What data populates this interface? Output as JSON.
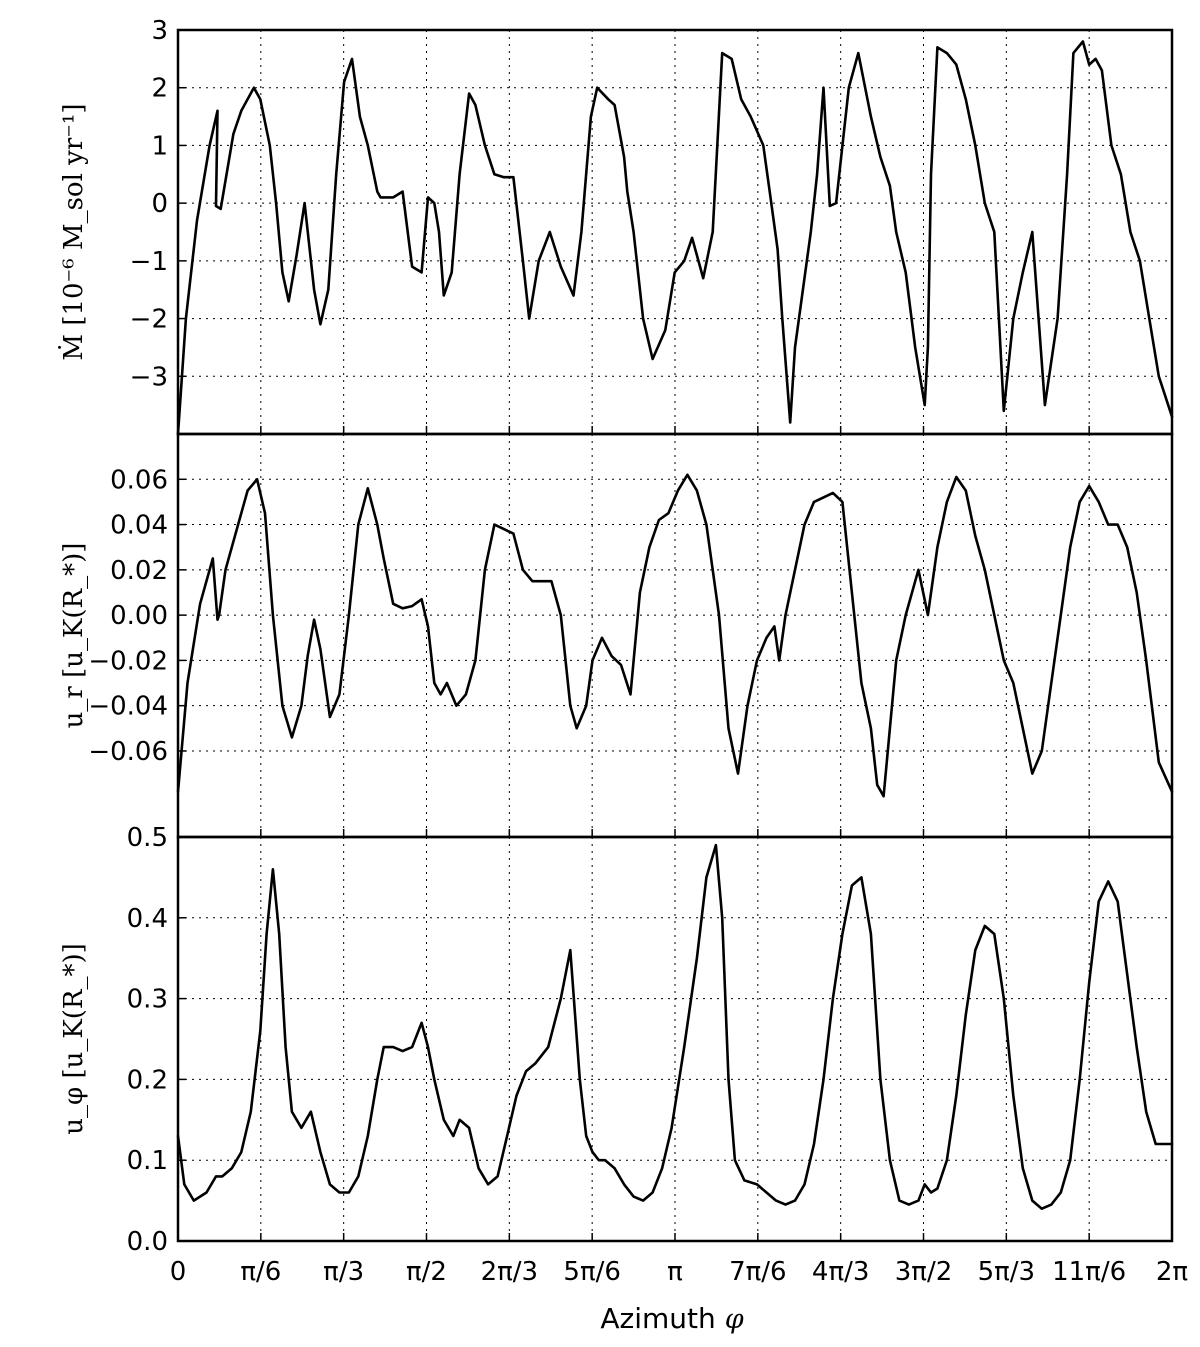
{
  "xaxis": {
    "label_text": "Azimuth",
    "label_symbol": "φ",
    "range": [
      0,
      6.2832
    ],
    "ticks": [
      {
        "value": 0,
        "label": "0"
      },
      {
        "value": 0.5236,
        "label": "π/6"
      },
      {
        "value": 1.0472,
        "label": "π/3"
      },
      {
        "value": 1.5708,
        "label": "π/2"
      },
      {
        "value": 2.0944,
        "label": "2π/3"
      },
      {
        "value": 2.618,
        "label": "5π/6"
      },
      {
        "value": 3.1416,
        "label": "π"
      },
      {
        "value": 3.6652,
        "label": "7π/6"
      },
      {
        "value": 4.1888,
        "label": "4π/3"
      },
      {
        "value": 4.7124,
        "label": "3π/2"
      },
      {
        "value": 5.236,
        "label": "5π/3"
      },
      {
        "value": 5.7596,
        "label": "11π/6"
      },
      {
        "value": 6.2832,
        "label": "2π"
      }
    ]
  },
  "chart_data": [
    {
      "type": "line",
      "ylabel": "Ṁ [10⁻⁶ M_sol yr⁻¹]",
      "ylim": [
        -4.0,
        3.0
      ],
      "yticks": [
        {
          "value": 3,
          "label": "3"
        },
        {
          "value": 2,
          "label": "2"
        },
        {
          "value": 1,
          "label": "1"
        },
        {
          "value": 0,
          "label": "0"
        },
        {
          "value": -1,
          "label": "−1"
        },
        {
          "value": -2,
          "label": "−2"
        },
        {
          "value": -3,
          "label": "−3"
        }
      ],
      "grid": true,
      "x": [
        0,
        0.05,
        0.12,
        0.2,
        0.25,
        0.24,
        0.27,
        0.35,
        0.4,
        0.48,
        0.52,
        0.58,
        0.62,
        0.66,
        0.7,
        0.75,
        0.8,
        0.86,
        0.9,
        0.95,
        1.0,
        1.05,
        1.1,
        1.15,
        1.2,
        1.26,
        1.28,
        1.3,
        1.36,
        1.42,
        1.48,
        1.54,
        1.58,
        1.62,
        1.65,
        1.68,
        1.73,
        1.78,
        1.84,
        1.88,
        1.94,
        2.0,
        2.06,
        2.12,
        2.18,
        2.22,
        2.28,
        2.35,
        2.42,
        2.5,
        2.55,
        2.61,
        2.65,
        2.72,
        2.76,
        2.82,
        2.84,
        2.88,
        2.94,
        3.0,
        3.08,
        3.14,
        3.2,
        3.25,
        3.32,
        3.38,
        3.44,
        3.5,
        3.56,
        3.62,
        3.7,
        3.74,
        3.79,
        3.82,
        3.87,
        3.9,
        3.95,
        4.0,
        4.04,
        4.08,
        4.12,
        4.16,
        4.24,
        4.3,
        4.38,
        4.44,
        4.5,
        4.54,
        4.6,
        4.66,
        4.72,
        4.74,
        4.76,
        4.8,
        4.86,
        4.92,
        4.98,
        5.04,
        5.1,
        5.16,
        5.22,
        5.28,
        5.34,
        5.4,
        5.48,
        5.56,
        5.62,
        5.66,
        5.72,
        5.76,
        5.8,
        5.84,
        5.9,
        5.96,
        6.02,
        6.08,
        6.14,
        6.2,
        6.2832
      ],
      "y": [
        -4.0,
        -2.0,
        -0.3,
        1.0,
        1.6,
        -0.05,
        -0.1,
        1.2,
        1.6,
        2.0,
        1.8,
        1.0,
        0.0,
        -1.2,
        -1.7,
        -0.9,
        0.0,
        -1.5,
        -2.1,
        -1.5,
        0.5,
        2.1,
        2.5,
        1.5,
        1.0,
        0.2,
        0.1,
        0.1,
        0.1,
        0.2,
        -1.1,
        -1.2,
        0.1,
        0.0,
        -0.5,
        -1.6,
        -1.2,
        0.5,
        1.9,
        1.7,
        1.0,
        0.5,
        0.45,
        0.45,
        -1.0,
        -2.0,
        -1.0,
        -0.5,
        -1.1,
        -1.6,
        -0.5,
        1.5,
        2.0,
        1.8,
        1.7,
        0.8,
        0.2,
        -0.5,
        -2.0,
        -2.7,
        -2.2,
        -1.2,
        -1.0,
        -0.6,
        -1.3,
        -0.5,
        2.6,
        2.5,
        1.8,
        1.5,
        1.0,
        0.2,
        -0.8,
        -2.0,
        -3.8,
        -2.5,
        -1.5,
        -0.5,
        0.5,
        2.0,
        -0.05,
        0.0,
        2.0,
        2.6,
        1.5,
        0.8,
        0.3,
        -0.5,
        -1.2,
        -2.5,
        -3.5,
        -2.5,
        0.5,
        2.7,
        2.6,
        2.4,
        1.8,
        1.0,
        0.0,
        -0.5,
        -3.6,
        -2.0,
        -1.2,
        -0.5,
        -3.5,
        -2.0,
        0.5,
        2.6,
        2.8,
        2.4,
        2.5,
        2.3,
        1.0,
        0.5,
        -0.5,
        -1.0,
        -2.0,
        -3.0,
        -3.7
      ]
    },
    {
      "type": "line",
      "ylabel": "u_r [u_K(R_*)]",
      "ylim": [
        -0.098,
        0.08
      ],
      "yticks": [
        {
          "value": 0.06,
          "label": "0.06"
        },
        {
          "value": 0.04,
          "label": "0.04"
        },
        {
          "value": 0.02,
          "label": "0.02"
        },
        {
          "value": 0.0,
          "label": "0.00"
        },
        {
          "value": -0.02,
          "label": "−0.02"
        },
        {
          "value": -0.04,
          "label": "−0.04"
        },
        {
          "value": -0.06,
          "label": "−0.06"
        }
      ],
      "grid": true,
      "x": [
        0,
        0.06,
        0.14,
        0.22,
        0.25,
        0.26,
        0.3,
        0.38,
        0.44,
        0.5,
        0.55,
        0.6,
        0.66,
        0.72,
        0.78,
        0.82,
        0.86,
        0.9,
        0.96,
        1.02,
        1.08,
        1.14,
        1.2,
        1.26,
        1.3,
        1.36,
        1.42,
        1.48,
        1.54,
        1.58,
        1.62,
        1.66,
        1.7,
        1.76,
        1.82,
        1.88,
        1.94,
        2.0,
        2.06,
        2.12,
        2.18,
        2.24,
        2.3,
        2.36,
        2.42,
        2.48,
        2.52,
        2.58,
        2.62,
        2.68,
        2.74,
        2.8,
        2.86,
        2.92,
        2.98,
        3.04,
        3.1,
        3.16,
        3.22,
        3.28,
        3.34,
        3.42,
        3.48,
        3.54,
        3.6,
        3.66,
        3.72,
        3.77,
        3.8,
        3.84,
        3.9,
        3.96,
        4.02,
        4.08,
        4.14,
        4.2,
        4.26,
        4.32,
        4.38,
        4.42,
        4.46,
        4.5,
        4.54,
        4.6,
        4.68,
        4.74,
        4.8,
        4.86,
        4.92,
        4.98,
        5.04,
        5.1,
        5.16,
        5.22,
        5.28,
        5.34,
        5.4,
        5.46,
        5.52,
        5.58,
        5.64,
        5.7,
        5.76,
        5.82,
        5.88,
        5.94,
        6.0,
        6.06,
        6.12,
        6.2,
        6.2832
      ],
      "y": [
        -0.078,
        -0.03,
        0.005,
        0.025,
        -0.002,
        0.0,
        0.02,
        0.04,
        0.055,
        0.06,
        0.045,
        0.0,
        -0.04,
        -0.054,
        -0.04,
        -0.018,
        -0.002,
        -0.015,
        -0.045,
        -0.035,
        0.0,
        0.04,
        0.056,
        0.04,
        0.025,
        0.005,
        0.003,
        0.004,
        0.007,
        -0.005,
        -0.03,
        -0.035,
        -0.03,
        -0.04,
        -0.035,
        -0.02,
        0.02,
        0.04,
        0.038,
        0.036,
        0.02,
        0.015,
        0.015,
        0.015,
        0.0,
        -0.04,
        -0.05,
        -0.04,
        -0.02,
        -0.01,
        -0.018,
        -0.022,
        -0.035,
        0.01,
        0.03,
        0.042,
        0.045,
        0.055,
        0.062,
        0.055,
        0.04,
        0.0,
        -0.05,
        -0.07,
        -0.04,
        -0.02,
        -0.01,
        -0.005,
        -0.02,
        0.0,
        0.02,
        0.04,
        0.05,
        0.052,
        0.054,
        0.05,
        0.01,
        -0.03,
        -0.05,
        -0.075,
        -0.08,
        -0.05,
        -0.02,
        0.0,
        0.02,
        0.0,
        0.03,
        0.05,
        0.061,
        0.055,
        0.035,
        0.02,
        0.0,
        -0.02,
        -0.03,
        -0.05,
        -0.07,
        -0.06,
        -0.03,
        0.0,
        0.03,
        0.05,
        0.057,
        0.05,
        0.04,
        0.04,
        0.03,
        0.01,
        -0.02,
        -0.065,
        -0.078
      ]
    },
    {
      "type": "line",
      "ylabel": "u_φ [u_K(R_*)]",
      "ylim": [
        0.0,
        0.5
      ],
      "yticks": [
        {
          "value": 0.5,
          "label": "0.5"
        },
        {
          "value": 0.4,
          "label": "0.4"
        },
        {
          "value": 0.3,
          "label": "0.3"
        },
        {
          "value": 0.2,
          "label": "0.2"
        },
        {
          "value": 0.1,
          "label": "0.1"
        },
        {
          "value": 0.0,
          "label": "0.0"
        }
      ],
      "grid": true,
      "x": [
        0,
        0.04,
        0.1,
        0.18,
        0.24,
        0.28,
        0.34,
        0.4,
        0.46,
        0.52,
        0.56,
        0.6,
        0.64,
        0.68,
        0.72,
        0.78,
        0.84,
        0.9,
        0.96,
        1.02,
        1.08,
        1.14,
        1.2,
        1.26,
        1.3,
        1.36,
        1.42,
        1.48,
        1.54,
        1.58,
        1.62,
        1.68,
        1.74,
        1.78,
        1.84,
        1.9,
        1.96,
        2.02,
        2.08,
        2.14,
        2.2,
        2.26,
        2.34,
        2.42,
        2.48,
        2.54,
        2.58,
        2.62,
        2.66,
        2.7,
        2.76,
        2.82,
        2.88,
        2.94,
        3.0,
        3.06,
        3.12,
        3.2,
        3.28,
        3.34,
        3.4,
        3.44,
        3.48,
        3.52,
        3.58,
        3.66,
        3.72,
        3.78,
        3.84,
        3.9,
        3.96,
        4.02,
        4.08,
        4.14,
        4.2,
        4.26,
        4.32,
        4.38,
        4.44,
        4.5,
        4.56,
        4.62,
        4.68,
        4.72,
        4.76,
        4.8,
        4.86,
        4.92,
        4.98,
        5.04,
        5.1,
        5.16,
        5.22,
        5.28,
        5.34,
        5.4,
        5.46,
        5.52,
        5.58,
        5.64,
        5.7,
        5.76,
        5.82,
        5.88,
        5.94,
        6.0,
        6.06,
        6.12,
        6.18,
        6.2832
      ],
      "y": [
        0.13,
        0.07,
        0.05,
        0.06,
        0.08,
        0.08,
        0.09,
        0.11,
        0.16,
        0.26,
        0.38,
        0.46,
        0.38,
        0.24,
        0.16,
        0.14,
        0.16,
        0.11,
        0.07,
        0.06,
        0.06,
        0.08,
        0.13,
        0.2,
        0.24,
        0.24,
        0.235,
        0.24,
        0.27,
        0.24,
        0.2,
        0.15,
        0.13,
        0.15,
        0.14,
        0.09,
        0.07,
        0.08,
        0.13,
        0.18,
        0.21,
        0.22,
        0.24,
        0.3,
        0.36,
        0.2,
        0.13,
        0.11,
        0.1,
        0.1,
        0.09,
        0.07,
        0.055,
        0.05,
        0.06,
        0.09,
        0.14,
        0.24,
        0.35,
        0.45,
        0.49,
        0.4,
        0.2,
        0.1,
        0.075,
        0.07,
        0.06,
        0.05,
        0.045,
        0.05,
        0.07,
        0.12,
        0.2,
        0.3,
        0.38,
        0.44,
        0.45,
        0.38,
        0.2,
        0.1,
        0.05,
        0.045,
        0.05,
        0.07,
        0.06,
        0.065,
        0.1,
        0.18,
        0.28,
        0.36,
        0.39,
        0.38,
        0.3,
        0.18,
        0.09,
        0.05,
        0.04,
        0.045,
        0.06,
        0.1,
        0.2,
        0.32,
        0.42,
        0.445,
        0.42,
        0.33,
        0.24,
        0.16,
        0.12,
        0.12
      ]
    }
  ]
}
